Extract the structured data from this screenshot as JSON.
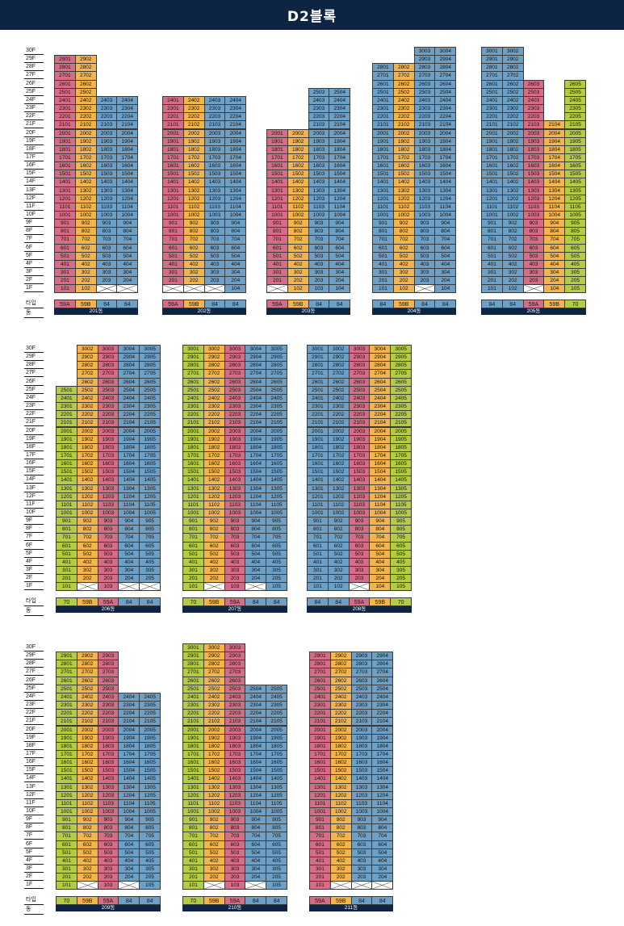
{
  "title": "D2블록",
  "row_labels": {
    "type": "타입",
    "dong": "동"
  },
  "colors": {
    "59A": "#d66d86",
    "59B": "#f2b44d",
    "84": "#6e9fc4",
    "70": "#b3cc45",
    "header": "#0e2443"
  },
  "floors": [
    "30F",
    "29F",
    "28F",
    "27F",
    "26F",
    "25F",
    "24F",
    "23F",
    "22F",
    "21F",
    "20F",
    "19F",
    "18F",
    "17F",
    "16F",
    "15F",
    "14F",
    "13F",
    "12F",
    "11F",
    "10F",
    "9F",
    "8F",
    "7F",
    "6F",
    "5F",
    "4F",
    "3F",
    "2F",
    "1F"
  ],
  "buildings": [
    {
      "dong": "201동",
      "types": [
        "59A",
        "59B",
        "84",
        "84"
      ],
      "top": [
        29,
        29,
        24,
        24
      ],
      "bottom": [
        1,
        1,
        2,
        2
      ]
    },
    {
      "dong": "202동",
      "types": [
        "59A",
        "59B",
        "84",
        "84"
      ],
      "top": [
        24,
        24,
        24,
        24
      ],
      "bottom": [
        2,
        2,
        2,
        1
      ]
    },
    {
      "dong": "203동",
      "types": [
        "59A",
        "59B",
        "84",
        "84"
      ],
      "top": [
        20,
        20,
        25,
        25
      ],
      "bottom": [
        2,
        1,
        1,
        1
      ]
    },
    {
      "dong": "204동",
      "types": [
        "84",
        "59B",
        "84",
        "84"
      ],
      "top": [
        28,
        28,
        30,
        30
      ],
      "bottom": [
        1,
        1,
        2,
        1
      ]
    },
    {
      "dong": "205동",
      "types": [
        "84",
        "84",
        "59A",
        "59B",
        "70"
      ],
      "top": [
        30,
        30,
        26,
        21,
        26
      ],
      "bottom": [
        1,
        1,
        2,
        1,
        1
      ]
    },
    {
      "dong": "206동",
      "types": [
        "70",
        "59B",
        "59A",
        "84",
        "84"
      ],
      "top": [
        25,
        30,
        30,
        30,
        30
      ],
      "bottom": [
        1,
        2,
        1,
        2,
        2
      ]
    },
    {
      "dong": "207동",
      "types": [
        "70",
        "59B",
        "59A",
        "84",
        "84"
      ],
      "top": [
        30,
        30,
        30,
        30,
        30
      ],
      "bottom": [
        1,
        2,
        1,
        2,
        1
      ]
    },
    {
      "dong": "208동",
      "types": [
        "84",
        "84",
        "59A",
        "59B",
        "70"
      ],
      "top": [
        30,
        30,
        30,
        30,
        30
      ],
      "bottom": [
        1,
        1,
        2,
        1,
        1
      ]
    },
    {
      "dong": "209동",
      "types": [
        "70",
        "59B",
        "59A",
        "84",
        "84"
      ],
      "top": [
        29,
        29,
        29,
        24,
        24
      ],
      "bottom": [
        1,
        2,
        1,
        2,
        1
      ]
    },
    {
      "dong": "210동",
      "types": [
        "70",
        "59B",
        "59A",
        "84",
        "84"
      ],
      "top": [
        30,
        30,
        30,
        25,
        25
      ],
      "bottom": [
        1,
        2,
        1,
        2,
        1
      ]
    },
    {
      "dong": "211동",
      "types": [
        "59A",
        "59B",
        "84",
        "84"
      ],
      "top": [
        29,
        29,
        29,
        29
      ],
      "bottom": [
        1,
        2,
        2,
        2
      ]
    }
  ]
}
